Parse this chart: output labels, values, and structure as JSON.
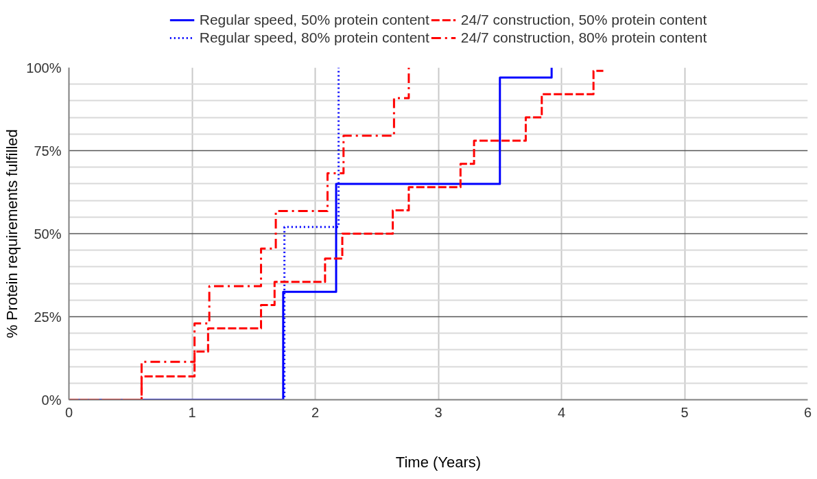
{
  "chart_data": {
    "type": "step",
    "xlabel": "Time (Years)",
    "ylabel": "% Protein requirements fulfilled",
    "xlim": [
      0,
      6
    ],
    "xticks": [
      0,
      1,
      2,
      3,
      4,
      5,
      6
    ],
    "ylim": [
      0,
      100
    ],
    "yticks": [
      {
        "value": 0,
        "label": "0%"
      },
      {
        "value": 25,
        "label": "25%"
      },
      {
        "value": 50,
        "label": "50%"
      },
      {
        "value": 75,
        "label": "75%"
      },
      {
        "value": 100,
        "label": "100%"
      }
    ],
    "grid": true,
    "legend": "top",
    "marker": "none",
    "series": [
      {
        "name": "Regular speed, 50% protein content",
        "color": "#0000ff",
        "line_style": "solid",
        "x": [
          0,
          1.74,
          2.17,
          3.5,
          3.92
        ],
        "values": [
          0,
          32.5,
          65,
          97,
          100
        ]
      },
      {
        "name": "Regular speed, 80% protein content",
        "color": "#0000ff",
        "line_style": "dotted",
        "x": [
          0,
          1.75,
          2.19
        ],
        "values": [
          0,
          52,
          100
        ]
      },
      {
        "name": "24/7 construction, 50% protein content",
        "color": "#ff0000",
        "line_style": "dashed",
        "x": [
          0,
          0.59,
          1.02,
          1.13,
          1.56,
          1.67,
          2.08,
          2.22,
          2.63,
          2.76,
          3.18,
          3.29,
          3.71,
          3.84,
          4.26,
          4.34
        ],
        "values": [
          0,
          7,
          14.5,
          21.5,
          28.5,
          35.5,
          42.5,
          50,
          57,
          64,
          71,
          78,
          85,
          92,
          99,
          99
        ]
      },
      {
        "name": "24/7 construction, 80% protein content",
        "color": "#ff0000",
        "line_style": "dashdot",
        "x": [
          0,
          0.59,
          1.02,
          1.14,
          1.56,
          1.68,
          2.1,
          2.23,
          2.64,
          2.76
        ],
        "values": [
          0,
          11.4,
          23,
          34.2,
          45.5,
          56.8,
          68.2,
          79.5,
          90.8,
          100
        ]
      }
    ]
  }
}
